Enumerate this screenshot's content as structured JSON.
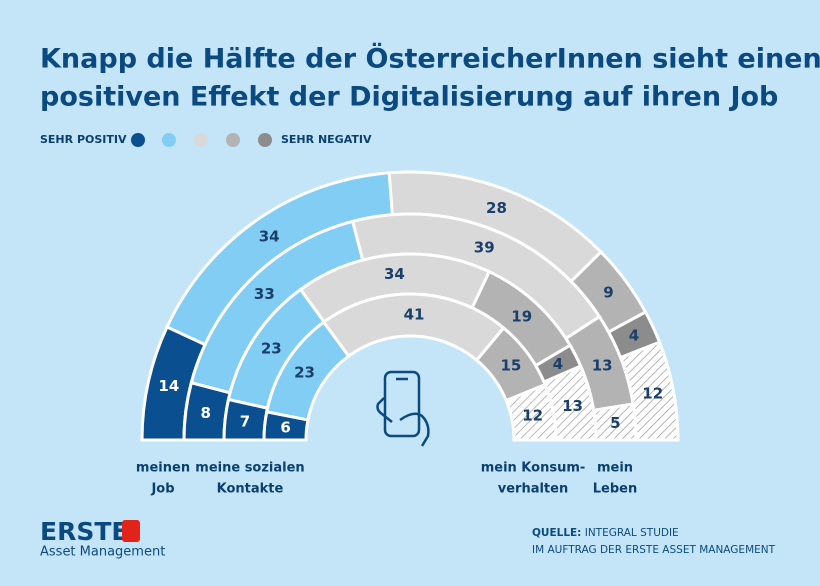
{
  "chart_data": {
    "type": "semi-donut",
    "title": [
      "Knapp die Hälfte der ÖsterreicherInnen sieht einen",
      "positiven Effekt der Digitalisierung auf ihren Job"
    ],
    "categories": [
      [
        "meinen",
        "Job"
      ],
      [
        "mein",
        "Leben"
      ],
      [
        "meine sozialen",
        "Kontakte"
      ],
      [
        "mein Konsum-",
        "verhalten"
      ]
    ],
    "series": [
      {
        "name": "SEHR POSITIV",
        "color": "#0a4f8f",
        "values": [
          14,
          8,
          7,
          6
        ]
      },
      {
        "name": null,
        "color": "#82cdf3",
        "values": [
          34,
          33,
          23,
          23
        ]
      },
      {
        "name": null,
        "color": "#d9d9d9",
        "values": [
          28,
          39,
          34,
          41
        ]
      },
      {
        "name": null,
        "color": "#b3b3b3",
        "values": [
          9,
          13,
          19,
          15
        ]
      },
      {
        "name": "SEHR NEGATIV",
        "color": "#8c8c8c",
        "values": [
          4,
          null,
          4,
          null
        ]
      },
      {
        "color": "hatch",
        "values": [
          12,
          5,
          13,
          12
        ]
      }
    ],
    "source": [
      "QUELLE:",
      "INTEGRAL STUDIE",
      "IM AUFTRAG DER ERSTE ASSET MANAGEMENT"
    ],
    "logo": [
      "ERSTE",
      "Asset Management"
    ]
  }
}
